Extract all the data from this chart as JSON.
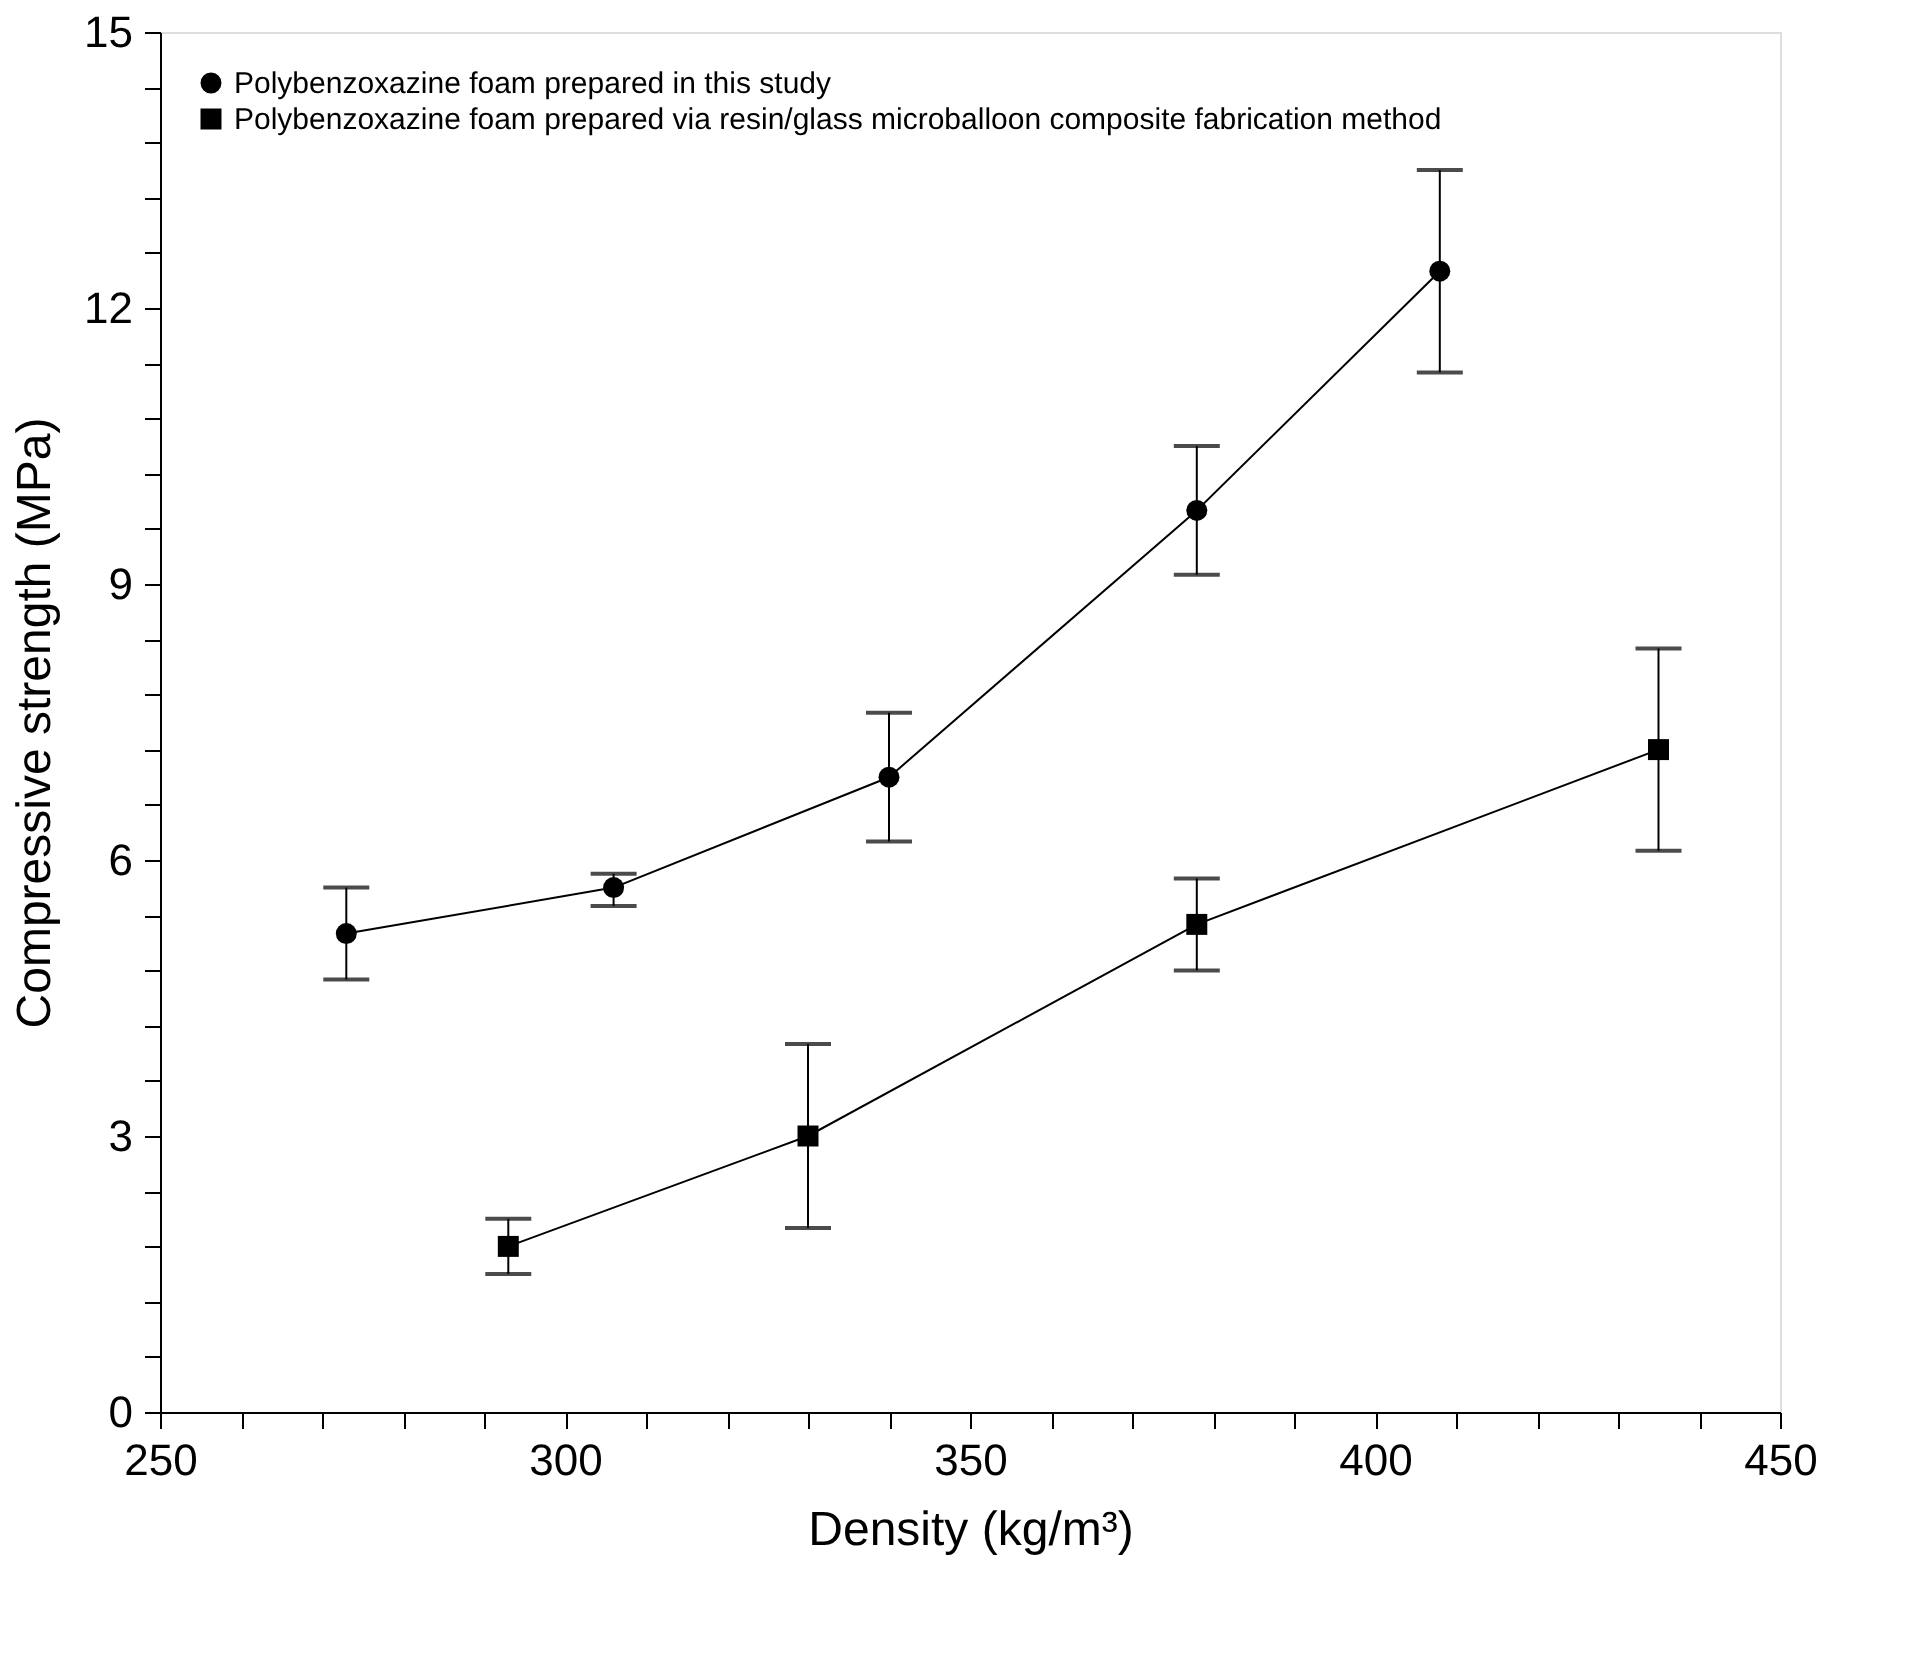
{
  "chart_data": {
    "type": "line",
    "xlabel": "Density (kg/m³)",
    "ylabel": "Compressive strength (MPa)",
    "xlim": [
      250,
      450
    ],
    "ylim": [
      0,
      15
    ],
    "xticks": [
      250,
      {
        "value": 260,
        "label": null
      },
      {
        "value": 270,
        "label": null
      },
      {
        "value": 280,
        "label": null
      },
      {
        "value": 290,
        "label": null
      },
      300,
      {
        "value": 310,
        "label": null
      },
      {
        "value": 320,
        "label": null
      },
      {
        "value": 330,
        "label": null
      },
      {
        "value": 340,
        "label": null
      },
      350,
      {
        "value": 360,
        "label": null
      },
      {
        "value": 370,
        "label": null
      },
      {
        "value": 380,
        "label": null
      },
      {
        "value": 390,
        "label": null
      },
      400,
      {
        "value": 410,
        "label": null
      },
      {
        "value": 420,
        "label": null
      },
      {
        "value": 430,
        "label": null
      },
      {
        "value": 440,
        "label": null
      },
      450
    ],
    "yticks": [
      0,
      {
        "value": 0.6,
        "label": null
      },
      {
        "value": 1.2,
        "label": null
      },
      {
        "value": 1.8,
        "label": null
      },
      {
        "value": 2.4,
        "label": null
      },
      3,
      {
        "value": 3.6,
        "label": null
      },
      {
        "value": 4.2,
        "label": null
      },
      {
        "value": 4.8,
        "label": null
      },
      {
        "value": 5.4,
        "label": null
      },
      6,
      {
        "value": 6.6,
        "label": null
      },
      {
        "value": 7.2,
        "label": null
      },
      {
        "value": 7.8,
        "label": null
      },
      {
        "value": 8.4,
        "label": null
      },
      9,
      {
        "value": 9.6,
        "label": null
      },
      {
        "value": 10.2,
        "label": null
      },
      {
        "value": 10.8,
        "label": null
      },
      {
        "value": 11.4,
        "label": null
      },
      12,
      {
        "value": 12.6,
        "label": null
      },
      {
        "value": 13.2,
        "label": null
      },
      {
        "value": 13.8,
        "label": null
      },
      {
        "value": 14.4,
        "label": null
      },
      15
    ],
    "grid": false,
    "legend": "top left",
    "line_style": "solid",
    "series": [
      {
        "name": "Polybenzoxazine foam prepared in this study",
        "color": "#000000",
        "marker": "circle",
        "x": [
          273,
          306,
          340,
          378,
          408
        ],
        "values": [
          5.2,
          5.7,
          6.9,
          9.8,
          12.4
        ],
        "errors": [
          [
            4.7,
            5.7
          ],
          [
            5.5,
            5.85
          ],
          [
            6.2,
            7.6
          ],
          [
            9.1,
            10.5
          ],
          [
            11.3,
            13.5
          ]
        ]
      },
      {
        "name": "Polybenzoxazine foam prepared via resin/glass microballoon composite fabrication method",
        "color": "#000000",
        "marker": "square",
        "x": [
          293,
          330,
          378,
          435
        ],
        "values": [
          1.8,
          3.0,
          5.3,
          7.2
        ],
        "errors": [
          [
            1.5,
            2.1
          ],
          [
            2.0,
            4.0
          ],
          [
            4.8,
            5.8
          ],
          [
            6.1,
            8.3
          ]
        ]
      }
    ]
  }
}
